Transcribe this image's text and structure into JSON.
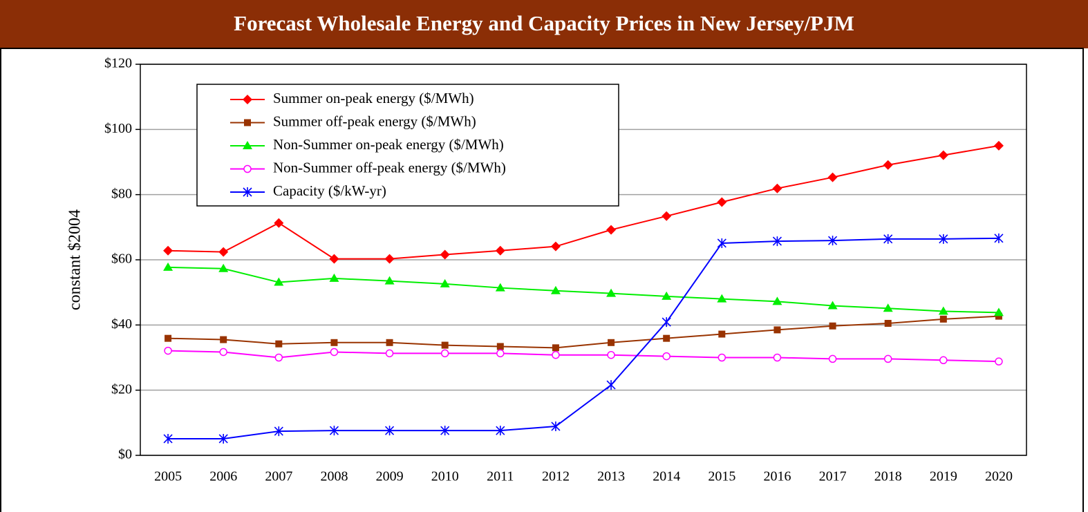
{
  "chart_data": {
    "type": "line",
    "title": "Forecast Wholesale Energy and Capacity Prices in New Jersey/PJM",
    "y_label": "constant $2004",
    "categories": [
      "2005",
      "2006",
      "2007",
      "2008",
      "2009",
      "2010",
      "2011",
      "2012",
      "2013",
      "2014",
      "2015",
      "2016",
      "2017",
      "2018",
      "2019",
      "2020"
    ],
    "ylim": [
      0,
      120
    ],
    "yticks": [
      {
        "value": 0,
        "label": "$0"
      },
      {
        "value": 20,
        "label": "$20"
      },
      {
        "value": 40,
        "label": "$40"
      },
      {
        "value": 60,
        "label": "$60"
      },
      {
        "value": 80,
        "label": "$80"
      },
      {
        "value": 100,
        "label": "$100"
      },
      {
        "value": 120,
        "label": "$120"
      }
    ],
    "grid": true,
    "legend": "upper left",
    "series": [
      {
        "name": "Summer on-peak energy ($/MWh)",
        "color": "#ff0000",
        "marker": "diamond",
        "values": [
          62.8,
          62.4,
          71.3,
          60.3,
          60.3,
          61.6,
          62.8,
          64.1,
          69.2,
          73.4,
          77.7,
          81.9,
          85.3,
          89.1,
          92.1,
          95.0
        ]
      },
      {
        "name": "Summer off-peak energy ($/MWh)",
        "color": "#993300",
        "marker": "square",
        "values": [
          35.9,
          35.5,
          34.2,
          34.6,
          34.6,
          33.8,
          33.4,
          33.0,
          34.6,
          35.9,
          37.2,
          38.5,
          39.7,
          40.5,
          41.8,
          42.7
        ]
      },
      {
        "name": "Non-Summer on-peak energy ($/MWh)",
        "color": "#00ee00",
        "marker": "triangle",
        "values": [
          57.7,
          57.3,
          53.1,
          54.3,
          53.5,
          52.6,
          51.4,
          50.5,
          49.7,
          48.8,
          48.0,
          47.2,
          45.9,
          45.1,
          44.2,
          43.8
        ]
      },
      {
        "name": "Non-Summer off-peak energy ($/MWh)",
        "color": "#ff00ff",
        "marker": "circle",
        "values": [
          32.1,
          31.7,
          30.0,
          31.7,
          31.3,
          31.3,
          31.3,
          30.8,
          30.8,
          30.4,
          30.0,
          30.0,
          29.6,
          29.6,
          29.2,
          28.8
        ]
      },
      {
        "name": "Capacity ($/kW-yr)",
        "color": "#0000ff",
        "marker": "star",
        "values": [
          5.1,
          5.1,
          7.4,
          7.6,
          7.6,
          7.6,
          7.6,
          8.9,
          21.6,
          40.9,
          65.1,
          65.7,
          65.9,
          66.4,
          66.4,
          66.6
        ]
      }
    ]
  }
}
